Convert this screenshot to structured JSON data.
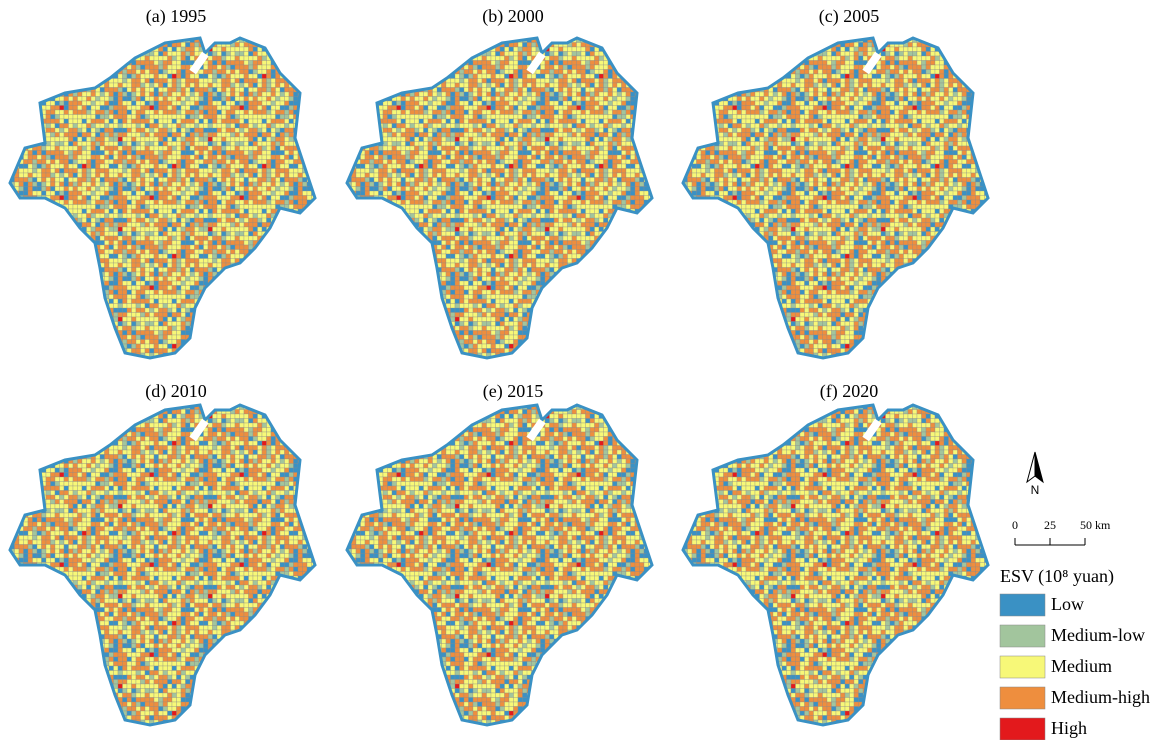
{
  "panels": [
    {
      "title": "(a) 1995"
    },
    {
      "title": "(b) 2000"
    },
    {
      "title": "(c) 2005"
    },
    {
      "title": "(d) 2010"
    },
    {
      "title": "(e) 2015"
    },
    {
      "title": "(f) 2020"
    }
  ],
  "north_arrow": {
    "label": "N"
  },
  "scale_bar": {
    "labels": [
      "0",
      "25",
      "50 km"
    ]
  },
  "legend": {
    "title": "ESV (10⁸ yuan)",
    "items": [
      {
        "label": "Low",
        "color": "#3a91c4"
      },
      {
        "label": "Medium-low",
        "color": "#a2c59d"
      },
      {
        "label": "Medium",
        "color": "#f7f878"
      },
      {
        "label": "Medium-high",
        "color": "#ee8e3e"
      },
      {
        "label": "High",
        "color": "#e3191c"
      }
    ]
  }
}
